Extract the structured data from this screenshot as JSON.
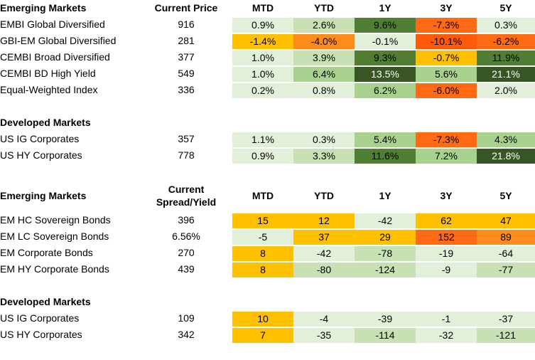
{
  "section1": {
    "title": "Emerging Markets",
    "col_name": "",
    "col_price": "Current Price",
    "cols": [
      "MTD",
      "YTD",
      "1Y",
      "3Y",
      "5Y"
    ],
    "rows": [
      {
        "name": "EMBI Global Diversified",
        "price": "916",
        "vals": [
          "0.9%",
          "2.6%",
          "9.6%",
          "-7.3%",
          "0.3%"
        ]
      },
      {
        "name": "GBI-EM Global Diversified",
        "price": "281",
        "vals": [
          "-1.4%",
          "-4.0%",
          "-0.1%",
          "-10.1%",
          "-6.2%"
        ]
      },
      {
        "name": "CEMBI Broad Diversified",
        "price": "377",
        "vals": [
          "1.0%",
          "3.9%",
          "9.3%",
          "-0.7%",
          "11.9%"
        ]
      },
      {
        "name": "CEMBI BD High Yield",
        "price": "549",
        "vals": [
          "1.0%",
          "6.4%",
          "13.5%",
          "5.6%",
          "21.1%"
        ]
      },
      {
        "name": "Equal-Weighted Index",
        "price": "336",
        "vals": [
          "0.2%",
          "0.8%",
          "6.2%",
          "-6.0%",
          "2.0%"
        ]
      }
    ]
  },
  "section2": {
    "title": "Developed Markets",
    "rows": [
      {
        "name": "US IG Corporates",
        "price": "357",
        "vals": [
          "1.1%",
          "0.3%",
          "5.4%",
          "-7.3%",
          "4.3%"
        ]
      },
      {
        "name": "US HY Corporates",
        "price": "778",
        "vals": [
          "0.9%",
          "3.3%",
          "11.6%",
          "7.2%",
          "21.8%"
        ]
      }
    ]
  },
  "section3": {
    "title": "Emerging Markets",
    "col_spread": "Current Spread/Yield",
    "cols": [
      "MTD",
      "YTD",
      "1Y",
      "3Y",
      "5Y"
    ],
    "rows": [
      {
        "name": "EM HC Sovereign Bonds",
        "price": "396",
        "vals": [
          "15",
          "12",
          "-42",
          "62",
          "47"
        ]
      },
      {
        "name": "EM LC Sovereign Bonds",
        "price": "6.56%",
        "vals": [
          "-5",
          "37",
          "29",
          "152",
          "89"
        ]
      },
      {
        "name": "EM Corporate Bonds",
        "price": "270",
        "vals": [
          "8",
          "-42",
          "-78",
          "-19",
          "-64"
        ]
      },
      {
        "name": "EM HY Corporate Bonds",
        "price": "439",
        "vals": [
          "8",
          "-80",
          "-124",
          "-9",
          "-77"
        ]
      }
    ]
  },
  "section4": {
    "title": "Developed Markets",
    "rows": [
      {
        "name": "US IG Corporates",
        "price": "109",
        "vals": [
          "10",
          "-4",
          "-39",
          "-1",
          "-37"
        ]
      },
      {
        "name": "US HY Corporates",
        "price": "342",
        "vals": [
          "7",
          "-35",
          "-114",
          "-32",
          "-121"
        ]
      }
    ]
  },
  "colors": {
    "light_green": "#e3f0d9",
    "mid_green": "#c7e0b4",
    "green": "#a9d18e",
    "dark_green": "#548235",
    "darkest_green": "#375623",
    "gold": "#ffc000",
    "orange": "#ff8c1a",
    "red_orange": "#ff5a0a"
  }
}
